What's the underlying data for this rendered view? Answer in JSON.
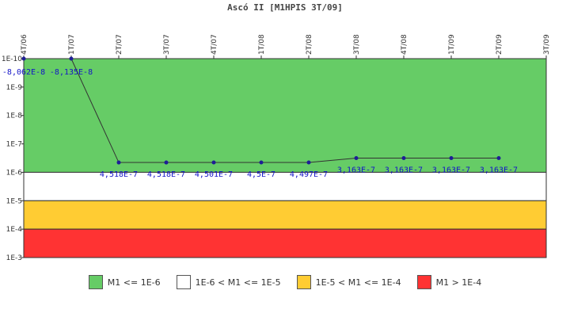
{
  "chart_data": {
    "type": "line",
    "title": "Ascó II [M1HPIS 3T/09]",
    "categories": [
      "4T/06",
      "1T/07",
      "2T/07",
      "3T/07",
      "4T/07",
      "1T/08",
      "2T/08",
      "3T/08",
      "4T/08",
      "1T/09",
      "2T/09",
      "3T/09"
    ],
    "y_scale": "log",
    "y_ticks": [
      "1E-10",
      "1E-9",
      "1E-8",
      "1E-7",
      "1E-6",
      "1E-5",
      "1E-4",
      "1E-3"
    ],
    "series": [
      {
        "color": "#1e1e96",
        "values": [
          -8.062e-08,
          -8.135e-08,
          4.518e-07,
          4.518e-07,
          4.501e-07,
          4.5e-07,
          4.497e-07,
          3.163e-07,
          3.163e-07,
          3.163e-07,
          3.163e-07,
          null
        ],
        "labels": [
          "-8,062E-8",
          "-8,135E-8",
          "4,518E-7",
          "4,518E-7",
          "4,501E-7",
          "4,5E-7",
          "4,497E-7",
          "3,163E-7",
          "3,163E-7",
          "3,163E-7",
          "3,163E-7",
          ""
        ]
      }
    ],
    "bands": [
      {
        "from": 1e-10,
        "to": 1e-06,
        "color": "#66cc66",
        "label": "M1 <= 1E-6"
      },
      {
        "from": 1e-06,
        "to": 1e-05,
        "color": "#ffffff",
        "label": "1E-6 < M1 <= 1E-5"
      },
      {
        "from": 1e-05,
        "to": 0.0001,
        "color": "#ffcc33",
        "label": "1E-5 < M1 <= 1E-4"
      },
      {
        "from": 0.0001,
        "to": 0.001,
        "color": "#ff3333",
        "label": "M1 > 1E-4"
      }
    ],
    "legend": "bottom"
  }
}
